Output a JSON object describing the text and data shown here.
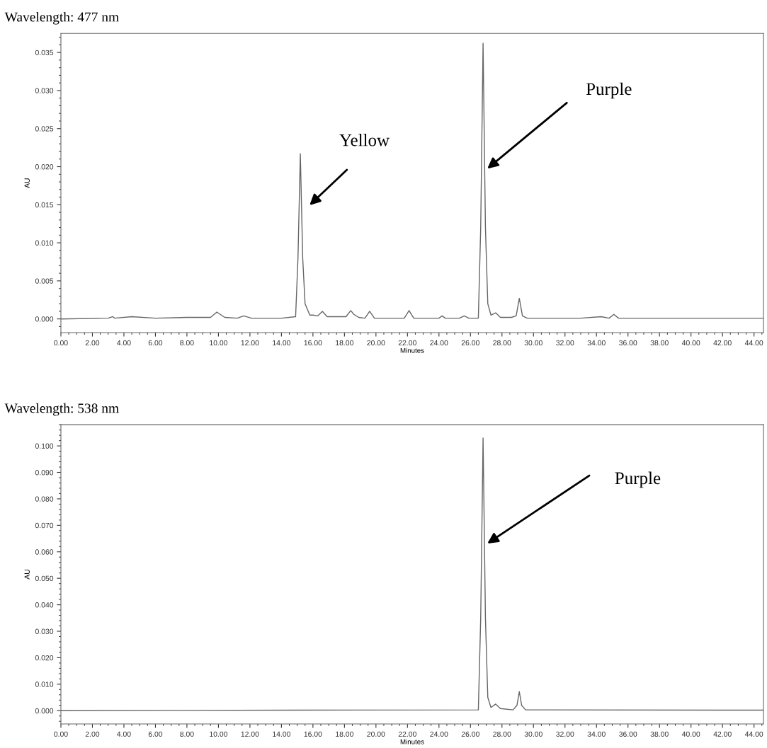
{
  "chart_data": [
    {
      "type": "line",
      "title": "Wavelength: 477 nm",
      "xlabel": "Minutes",
      "ylabel": "AU",
      "x": [
        0,
        3.0,
        3.3,
        3.4,
        4.5,
        6,
        8,
        9.5,
        9.9,
        10.4,
        11.2,
        11.6,
        12.1,
        14,
        14.9,
        15.05,
        15.2,
        15.35,
        15.5,
        15.8,
        16.0,
        16.3,
        16.6,
        16.9,
        17.5,
        18.1,
        18.4,
        18.6,
        18.9,
        19.3,
        19.6,
        19.9,
        21,
        21.8,
        22.1,
        22.4,
        24.0,
        24.2,
        24.4,
        25.3,
        25.6,
        25.9,
        26.5,
        26.65,
        26.8,
        26.95,
        27.1,
        27.3,
        27.6,
        27.9,
        28.6,
        28.9,
        29.1,
        29.3,
        29.6,
        33,
        34.3,
        34.8,
        35.1,
        35.4,
        36,
        44.6
      ],
      "series": [
        {
          "color": "#666666",
          "values": [
            0,
            0.0001,
            0.0003,
            0.0001,
            0.0003,
            0.0001,
            0.0002,
            0.0002,
            0.0009,
            0.0002,
            0.0001,
            0.0004,
            0.0001,
            0.0001,
            0.0003,
            0.008,
            0.0217,
            0.008,
            0.002,
            0.0005,
            0.0005,
            0.0004,
            0.001,
            0.0003,
            0.0003,
            0.0003,
            0.0011,
            0.0006,
            0.0002,
            0.0001,
            0.001,
            0.0001,
            0.0001,
            0.0001,
            0.0011,
            0.0001,
            0.0001,
            0.0004,
            0.0001,
            0.0001,
            0.0004,
            0.0001,
            0.0001,
            0.012,
            0.0362,
            0.012,
            0.002,
            0.0005,
            0.0008,
            0.0002,
            0.0002,
            0.0004,
            0.0027,
            0.0004,
            0.0001,
            0.0001,
            0.0003,
            0.0001,
            0.0006,
            0.0001,
            0.0001,
            0.0001
          ]
        }
      ],
      "xlim": [
        0,
        44.6
      ],
      "ylim": [
        -0.0018,
        0.0375
      ],
      "xticks": [
        {
          "value": 0,
          "label": "0.00"
        },
        {
          "value": 2,
          "label": "2.00"
        },
        {
          "value": 4,
          "label": "4.00"
        },
        {
          "value": 6,
          "label": "6.00"
        },
        {
          "value": 8,
          "label": "8.00"
        },
        {
          "value": 10,
          "label": "10.00"
        },
        {
          "value": 12,
          "label": "12.00"
        },
        {
          "value": 14,
          "label": "14.00"
        },
        {
          "value": 16,
          "label": "16.00"
        },
        {
          "value": 18,
          "label": "18.00"
        },
        {
          "value": 20,
          "label": "20.00"
        },
        {
          "value": 22,
          "label": "22.00"
        },
        {
          "value": 24,
          "label": "24.00"
        },
        {
          "value": 26,
          "label": "26.00"
        },
        {
          "value": 28,
          "label": "28.00"
        },
        {
          "value": 30,
          "label": "30.00"
        },
        {
          "value": 32,
          "label": "32.00"
        },
        {
          "value": 34,
          "label": "34.00"
        },
        {
          "value": 36,
          "label": "36.00"
        },
        {
          "value": 38,
          "label": "38.00"
        },
        {
          "value": 40,
          "label": "40.00"
        },
        {
          "value": 42,
          "label": "42.00"
        },
        {
          "value": 44,
          "label": "44.00"
        }
      ],
      "yticks": [
        {
          "value": 0,
          "label": "0.000"
        },
        {
          "value": 0.005,
          "label": "0.005"
        },
        {
          "value": 0.01,
          "label": "0.010"
        },
        {
          "value": 0.015,
          "label": "0.015"
        },
        {
          "value": 0.02,
          "label": "0.020"
        },
        {
          "value": 0.025,
          "label": "0.025"
        },
        {
          "value": 0.03,
          "label": "0.030"
        },
        {
          "value": 0.035,
          "label": "0.035"
        }
      ],
      "annotations": [
        "Yellow",
        "Purple"
      ]
    },
    {
      "type": "line",
      "title": "Wavelength: 538 nm",
      "xlabel": "Minutes",
      "ylabel": "AU",
      "x": [
        0,
        15,
        26.5,
        26.65,
        26.8,
        26.95,
        27.1,
        27.3,
        27.6,
        27.9,
        28.7,
        28.95,
        29.1,
        29.25,
        29.5,
        44.6
      ],
      "series": [
        {
          "color": "#666666",
          "values": [
            0,
            0.0002,
            0.0003,
            0.035,
            0.103,
            0.035,
            0.005,
            0.0012,
            0.0025,
            0.0008,
            0.0003,
            0.002,
            0.0072,
            0.002,
            0.0003,
            0.0002
          ]
        }
      ],
      "xlim": [
        0,
        44.6
      ],
      "ylim": [
        -0.005,
        0.108
      ],
      "xticks": [
        {
          "value": 0,
          "label": "0.00"
        },
        {
          "value": 2,
          "label": "2.00"
        },
        {
          "value": 4,
          "label": "4.00"
        },
        {
          "value": 6,
          "label": "6.00"
        },
        {
          "value": 8,
          "label": "8.00"
        },
        {
          "value": 10,
          "label": "10.00"
        },
        {
          "value": 12,
          "label": "12.00"
        },
        {
          "value": 14,
          "label": "14.00"
        },
        {
          "value": 16,
          "label": "16.00"
        },
        {
          "value": 18,
          "label": "18.00"
        },
        {
          "value": 20,
          "label": "20.00"
        },
        {
          "value": 22,
          "label": "22.00"
        },
        {
          "value": 24,
          "label": "24.00"
        },
        {
          "value": 26,
          "label": "26.00"
        },
        {
          "value": 28,
          "label": "28.00"
        },
        {
          "value": 30,
          "label": "30.00"
        },
        {
          "value": 32,
          "label": "32.00"
        },
        {
          "value": 34,
          "label": "34.00"
        },
        {
          "value": 36,
          "label": "36.00"
        },
        {
          "value": 38,
          "label": "38.00"
        },
        {
          "value": 40,
          "label": "40.00"
        },
        {
          "value": 42,
          "label": "42.00"
        },
        {
          "value": 44,
          "label": "44.00"
        }
      ],
      "yticks": [
        {
          "value": 0,
          "label": "0.000"
        },
        {
          "value": 0.01,
          "label": "0.010"
        },
        {
          "value": 0.02,
          "label": "0.020"
        },
        {
          "value": 0.03,
          "label": "0.030"
        },
        {
          "value": 0.04,
          "label": "0.040"
        },
        {
          "value": 0.05,
          "label": "0.050"
        },
        {
          "value": 0.06,
          "label": "0.060"
        },
        {
          "value": 0.07,
          "label": "0.070"
        },
        {
          "value": 0.08,
          "label": "0.080"
        },
        {
          "value": 0.09,
          "label": "0.090"
        },
        {
          "value": 0.1,
          "label": "0.100"
        }
      ],
      "annotations": [
        "Purple"
      ]
    }
  ]
}
